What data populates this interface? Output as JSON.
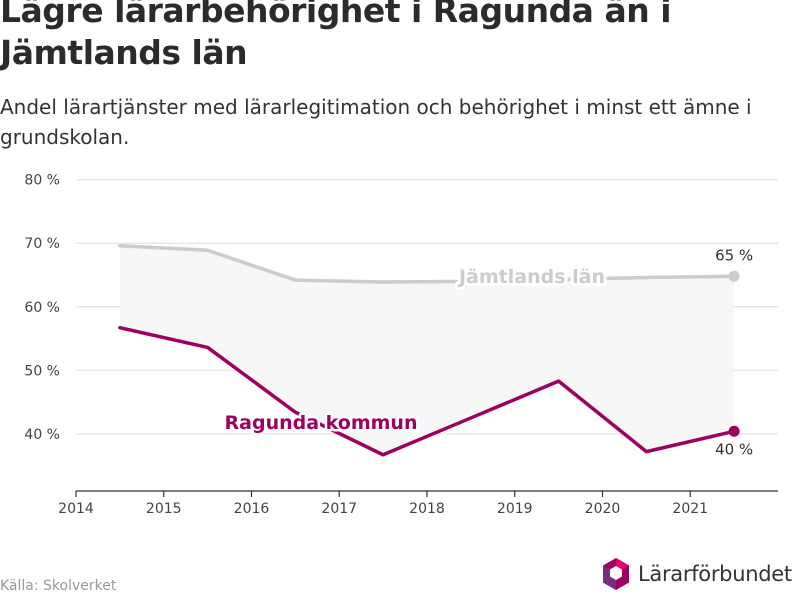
{
  "title": "Lägre lärarbehörighet i Ragunda än i Jämtlands län",
  "subtitle": "Andel lärartjänster med lärarlegitimation och behörighet i minst ett ämne i grundskolan.",
  "source": "Källa: Skolverket",
  "logo": {
    "text": "Lärarförbundet",
    "icon": "lararforbundet-logo-icon"
  },
  "colors": {
    "ragunda": "#9c0060",
    "jamtland": "#cccccc",
    "band": "#f7f7f7",
    "grid": "#dddddd",
    "axis": "#333333"
  },
  "chart_data": {
    "type": "line",
    "x_axis": {
      "range": [
        2014,
        2022
      ],
      "ticks": [
        2014,
        2015,
        2016,
        2017,
        2018,
        2019,
        2020,
        2021
      ],
      "tick_labels": [
        "2014",
        "2015",
        "2016",
        "2017",
        "2018",
        "2019",
        "2020",
        "2021"
      ]
    },
    "y_axis": {
      "range": [
        31,
        82
      ],
      "ticks": [
        40,
        50,
        60,
        70,
        80
      ],
      "tick_labels": [
        "40 %",
        "50 %",
        "60 %",
        "70 %",
        "80 %"
      ]
    },
    "grid": true,
    "legend": "direct labels on lines",
    "band_between_series": true,
    "series": [
      {
        "key": "jamtland",
        "name": "Jämtlands län",
        "x": [
          2014.5,
          2015.5,
          2016.5,
          2017.5,
          2018.5,
          2019.5,
          2020.5,
          2021.5
        ],
        "values": [
          69.6,
          68.9,
          64.2,
          63.9,
          64.0,
          64.3,
          64.6,
          64.8
        ],
        "end_label": "65 %"
      },
      {
        "key": "ragunda",
        "name": "Ragunda kommun",
        "x": [
          2014.5,
          2015.5,
          2016.5,
          2017.5,
          2018.5,
          2019.5,
          2020.5,
          2021.5
        ],
        "values": [
          56.7,
          53.6,
          43.4,
          36.7,
          42.5,
          48.3,
          37.2,
          40.4
        ],
        "end_label": "40 %"
      }
    ]
  }
}
